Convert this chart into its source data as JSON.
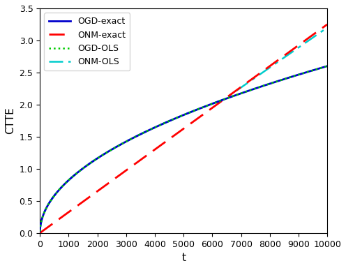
{
  "title": "",
  "xlabel": "t",
  "ylabel": "CTTE",
  "xlim": [
    0,
    10000
  ],
  "ylim": [
    0,
    3.5
  ],
  "xticks": [
    0,
    1000,
    2000,
    3000,
    4000,
    5000,
    6000,
    7000,
    8000,
    9000,
    10000
  ],
  "yticks": [
    0,
    0.5,
    1.0,
    1.5,
    2.0,
    2.5,
    3.0,
    3.5
  ],
  "t_max": 10000,
  "t_points": 2000,
  "ogd_exact_color": "#0000CC",
  "onm_exact_color": "#FF0000",
  "ogd_ols_color": "#00CC00",
  "onm_ols_color": "#00CCCC",
  "ogd_exact_lw": 2.0,
  "onm_exact_lw": 2.0,
  "ogd_ols_lw": 1.8,
  "onm_ols_lw": 1.8,
  "legend_labels": [
    "OGD-exact",
    "ONM-exact",
    "OGD-OLS",
    "ONM-OLS"
  ],
  "legend_loc": "upper left",
  "background_color": "#ffffff",
  "ogd_exact_scale": 0.026,
  "onm_exact_scale": 0.000325,
  "ogd_ols_scale": 0.026,
  "onm_ols_crossover": 6400,
  "onm_ols_linear_scale": 0.000325,
  "onm_ols_sqrt_scale": 0.026
}
